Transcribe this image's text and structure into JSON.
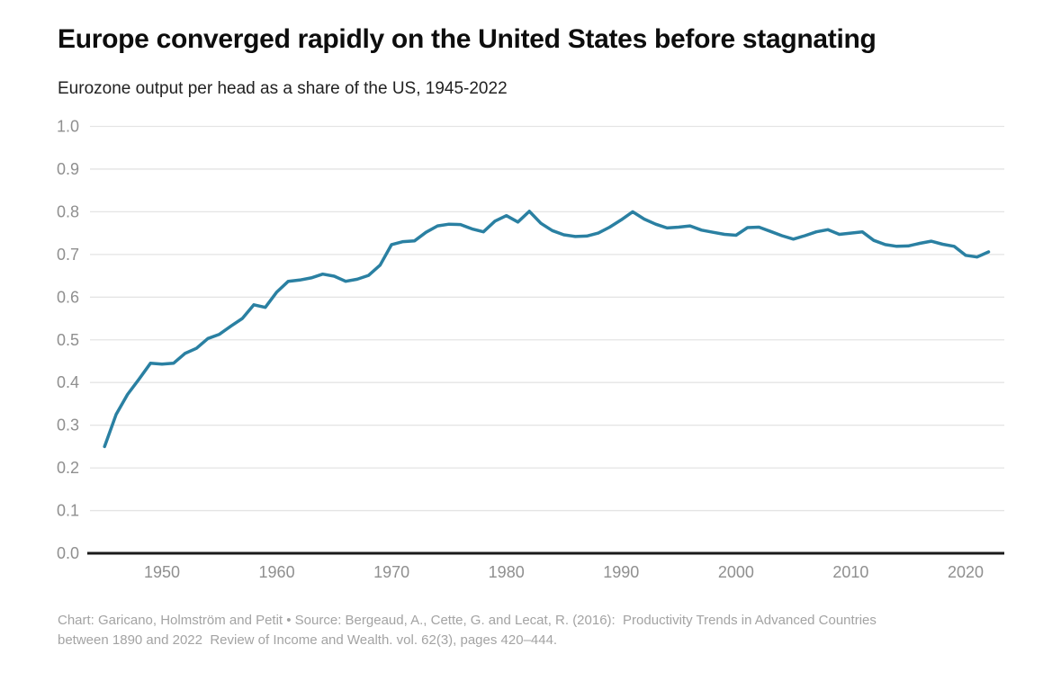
{
  "header": {
    "title": "Europe converged rapidly on the United States before stagnating",
    "subtitle": "Eurozone output per head as a share of the US, 1945-2022"
  },
  "chart_data": {
    "type": "line",
    "title": "Europe converged rapidly on the United States before stagnating",
    "subtitle": "Eurozone output per head as a share of the US, 1945-2022",
    "series_name": "Eurozone output per head as a share of the US",
    "x": [
      1945,
      1946,
      1947,
      1948,
      1949,
      1950,
      1951,
      1952,
      1953,
      1954,
      1955,
      1956,
      1957,
      1958,
      1959,
      1960,
      1961,
      1962,
      1963,
      1964,
      1965,
      1966,
      1967,
      1968,
      1969,
      1970,
      1971,
      1972,
      1973,
      1974,
      1975,
      1976,
      1977,
      1978,
      1979,
      1980,
      1981,
      1982,
      1983,
      1984,
      1985,
      1986,
      1987,
      1988,
      1989,
      1990,
      1991,
      1992,
      1993,
      1994,
      1995,
      1996,
      1997,
      1998,
      1999,
      2000,
      2001,
      2002,
      2003,
      2004,
      2005,
      2006,
      2007,
      2008,
      2009,
      2010,
      2011,
      2012,
      2013,
      2014,
      2015,
      2016,
      2017,
      2018,
      2019,
      2020,
      2021,
      2022
    ],
    "values": [
      0.25,
      0.325,
      0.372,
      0.408,
      0.445,
      0.443,
      0.445,
      0.468,
      0.48,
      0.503,
      0.513,
      0.532,
      0.55,
      0.582,
      0.576,
      0.612,
      0.637,
      0.64,
      0.645,
      0.654,
      0.649,
      0.637,
      0.642,
      0.651,
      0.675,
      0.723,
      0.73,
      0.732,
      0.752,
      0.767,
      0.771,
      0.77,
      0.76,
      0.753,
      0.778,
      0.791,
      0.776,
      0.801,
      0.773,
      0.756,
      0.746,
      0.742,
      0.743,
      0.75,
      0.764,
      0.781,
      0.8,
      0.783,
      0.771,
      0.762,
      0.764,
      0.767,
      0.757,
      0.752,
      0.747,
      0.745,
      0.763,
      0.764,
      0.754,
      0.744,
      0.736,
      0.744,
      0.753,
      0.758,
      0.747,
      0.75,
      0.753,
      0.733,
      0.723,
      0.719,
      0.72,
      0.726,
      0.731,
      0.724,
      0.719,
      0.698,
      0.694,
      0.706
    ],
    "xlabel": "",
    "ylabel": "",
    "xlim": [
      1945,
      2022
    ],
    "ylim": [
      0.0,
      1.0
    ],
    "yticks": [
      1.0,
      0.9,
      0.8,
      0.7,
      0.6,
      0.5,
      0.4,
      0.3,
      0.2,
      0.1,
      0.0
    ],
    "xticks": [
      1950,
      1960,
      1970,
      1980,
      1990,
      2000,
      2010,
      2020
    ],
    "grid": "horizontal",
    "legend": "none",
    "line_color": "#2a80a2",
    "gridline_color": "#e4e4e4",
    "axis_line_color": "#1a1a1a",
    "tick_label_color": "#8f8f8f"
  },
  "footer": {
    "caption_line1": "Chart: Garicano, Holmström and Petit • Source: Bergeaud, A., Cette, G. and Lecat, R. (2016):  Productivity Trends in Advanced Countries",
    "caption_line2": "between 1890 and 2022  Review of Income and Wealth. vol. 62(3), pages 420–444."
  }
}
